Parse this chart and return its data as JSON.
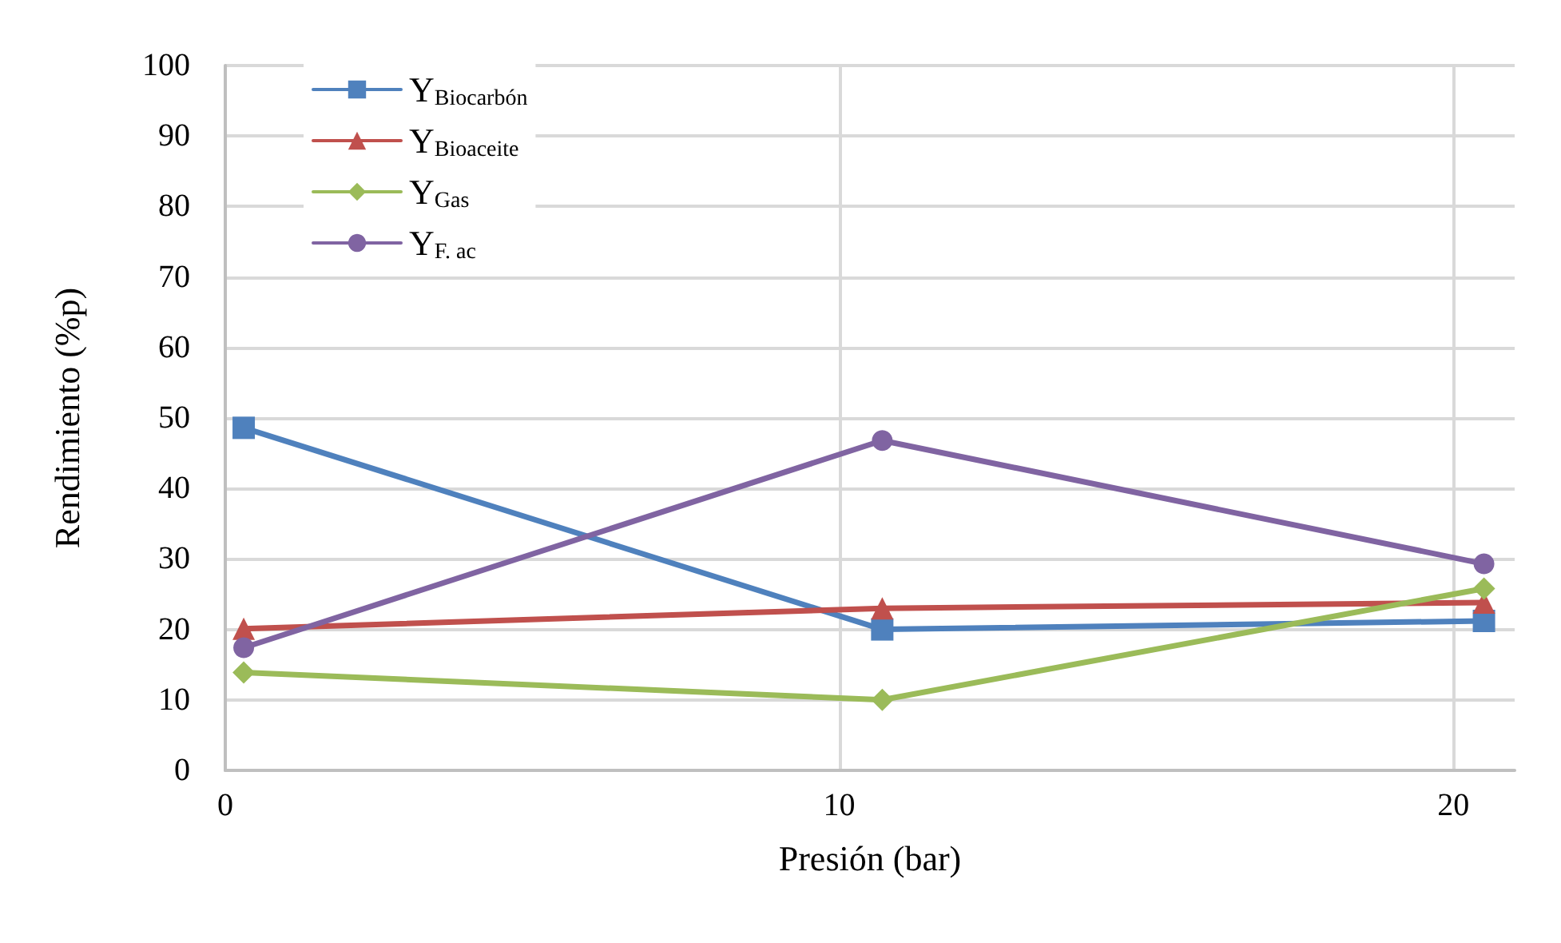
{
  "chart_data": {
    "type": "line",
    "xlabel": "Presión (bar)",
    "ylabel": "Rendimiento (%p)",
    "x": [
      0.3,
      10.7,
      20.5
    ],
    "xlim": [
      0,
      21
    ],
    "xticks": [
      0,
      10,
      20
    ],
    "ylim": [
      0,
      100
    ],
    "yticks": [
      0,
      10,
      20,
      30,
      40,
      50,
      60,
      70,
      80,
      90,
      100
    ],
    "grid": true,
    "legend": "top left",
    "line_style": "solid",
    "series": [
      {
        "name": "Y$_{Biocarbón}$",
        "color": "#4f81bd",
        "marker": "square",
        "values": [
          48.6,
          20.0,
          21.2
        ]
      },
      {
        "name": "Y$_{Bioaceite}$",
        "color": "#c0504d",
        "marker": "triangle",
        "values": [
          20.1,
          23.0,
          23.8
        ]
      },
      {
        "name": "Y$_{Gas}$",
        "color": "#9bbb59",
        "marker": "diamond",
        "values": [
          13.9,
          10.0,
          25.8
        ]
      },
      {
        "name": "Y$_{F. ac}$",
        "color": "#8064a2",
        "marker": "circle",
        "values": [
          17.4,
          46.8,
          29.3
        ]
      }
    ]
  }
}
